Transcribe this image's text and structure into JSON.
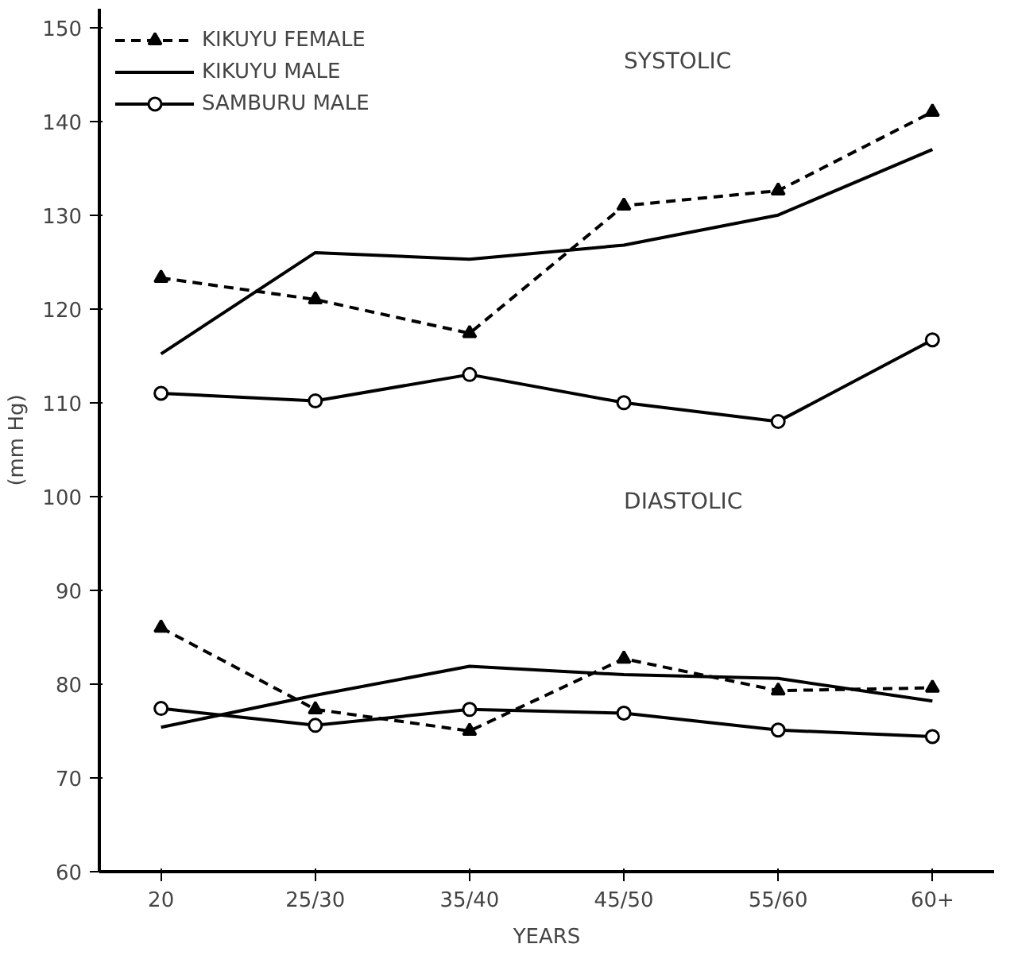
{
  "chart_data": {
    "type": "line",
    "xlabel": "YEARS",
    "ylabel": "(mm Hg)",
    "categories": [
      "20",
      "25/30",
      "35/40",
      "45/50",
      "55/60",
      "60+"
    ],
    "ylim": [
      60,
      152
    ],
    "yticks": [
      60,
      70,
      80,
      90,
      100,
      110,
      120,
      130,
      140,
      150
    ],
    "grid": false,
    "legend": "top left",
    "annotations": [
      "SYSTOLIC",
      "DIASTOLIC"
    ],
    "series": [
      {
        "name": "KIKUYU FEMALE",
        "color": "#000000",
        "line_style": "dashed",
        "marker": "triangle",
        "values": [
          123.3,
          121,
          117.4,
          131,
          132.6,
          141
        ]
      },
      {
        "name": "KIKUYU MALE",
        "color": "#000000",
        "line_style": "solid",
        "marker": "none",
        "values": [
          115.2,
          126,
          125.3,
          126.8,
          130,
          137
        ]
      },
      {
        "name": "SAMBURU MALE",
        "color": "#000000",
        "line_style": "solid",
        "marker": "circle",
        "values": [
          111,
          110.2,
          113,
          110,
          108,
          116.7
        ]
      },
      {
        "color": "#000000",
        "line_style": "dashed",
        "marker": "triangle",
        "values": [
          86,
          77.3,
          75,
          82.7,
          79.3,
          79.6
        ]
      },
      {
        "color": "#000000",
        "line_style": "solid",
        "marker": "none",
        "values": [
          75.4,
          78.8,
          81.9,
          81,
          80.6,
          78.2
        ]
      },
      {
        "color": "#000000",
        "line_style": "solid",
        "marker": "circle",
        "values": [
          77.4,
          75.6,
          77.3,
          76.9,
          75.1,
          74.4
        ]
      }
    ]
  }
}
